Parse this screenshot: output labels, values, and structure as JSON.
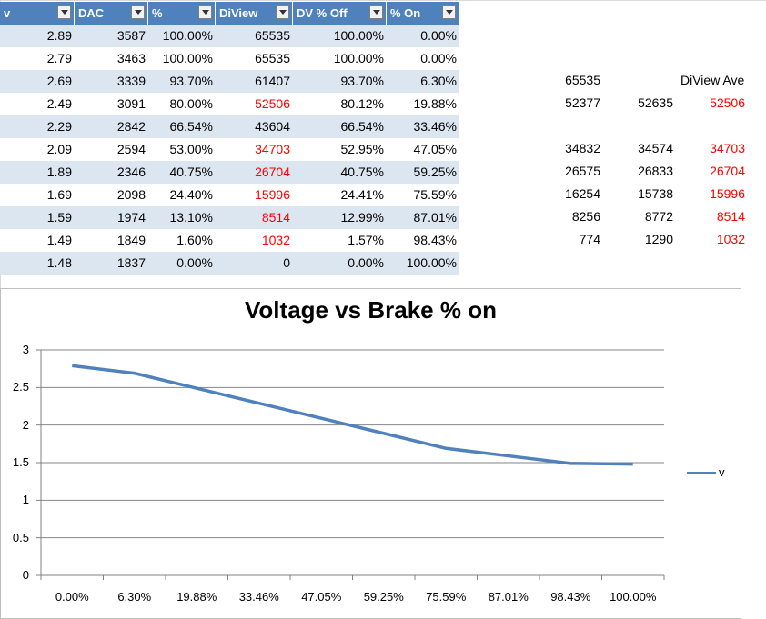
{
  "table": {
    "headers": [
      "v",
      "DAC",
      "%",
      "DiView",
      "DV % Off",
      "% On"
    ],
    "rows": [
      [
        "2.89",
        "3587",
        "100.00%",
        "65535",
        "100.00%",
        "0.00%"
      ],
      [
        "2.79",
        "3463",
        "100.00%",
        "65535",
        "100.00%",
        "0.00%"
      ],
      [
        "2.69",
        "3339",
        "93.70%",
        "61407",
        "93.70%",
        "6.30%"
      ],
      [
        "2.49",
        "3091",
        "80.00%",
        "52506",
        "80.12%",
        "19.88%"
      ],
      [
        "2.29",
        "2842",
        "66.54%",
        "43604",
        "66.54%",
        "33.46%"
      ],
      [
        "2.09",
        "2594",
        "53.00%",
        "34703",
        "52.95%",
        "47.05%"
      ],
      [
        "1.89",
        "2346",
        "40.75%",
        "26704",
        "40.75%",
        "59.25%"
      ],
      [
        "1.69",
        "2098",
        "24.40%",
        "15996",
        "24.41%",
        "75.59%"
      ],
      [
        "1.59",
        "1974",
        "13.10%",
        "8514",
        "12.99%",
        "87.01%"
      ],
      [
        "1.49",
        "1849",
        "1.60%",
        "1032",
        "1.57%",
        "98.43%"
      ],
      [
        "1.48",
        "1837",
        "0.00%",
        "0",
        "0.00%",
        "100.00%"
      ]
    ],
    "red_diview_rows": [
      3,
      5,
      6,
      7,
      8,
      9
    ]
  },
  "side": {
    "header_label": "DiView Ave",
    "r1": [
      "65535",
      "",
      ""
    ],
    "r2": [
      "52377",
      "52635",
      "52506"
    ],
    "r3": [
      "34832",
      "34574",
      "34703"
    ],
    "r4": [
      "26575",
      "26833",
      "26704"
    ],
    "r5": [
      "16254",
      "15738",
      "15996"
    ],
    "r6": [
      "8256",
      "8772",
      "8514"
    ],
    "r7": [
      "774",
      "1290",
      "1032"
    ]
  },
  "colors": {
    "header_bg": "#4f81bd",
    "band": "#dce6f1",
    "series": "#4f81bd",
    "highlight_text": "#ff0000"
  },
  "chart_data": {
    "type": "line",
    "title": "Voltage vs Brake % on",
    "categories": [
      "0.00%",
      "6.30%",
      "19.88%",
      "33.46%",
      "47.05%",
      "59.25%",
      "75.59%",
      "87.01%",
      "98.43%",
      "100.00%"
    ],
    "series": [
      {
        "name": "v",
        "values": [
          2.79,
          2.69,
          2.49,
          2.29,
          2.09,
          1.89,
          1.69,
          1.59,
          1.49,
          1.48
        ]
      }
    ],
    "ylim": [
      0,
      3
    ],
    "yticks": [
      "0",
      "0.5",
      "1",
      "1.5",
      "2",
      "2.5",
      "3"
    ],
    "grid": true,
    "legend": "right",
    "xlabel": "",
    "ylabel": ""
  }
}
